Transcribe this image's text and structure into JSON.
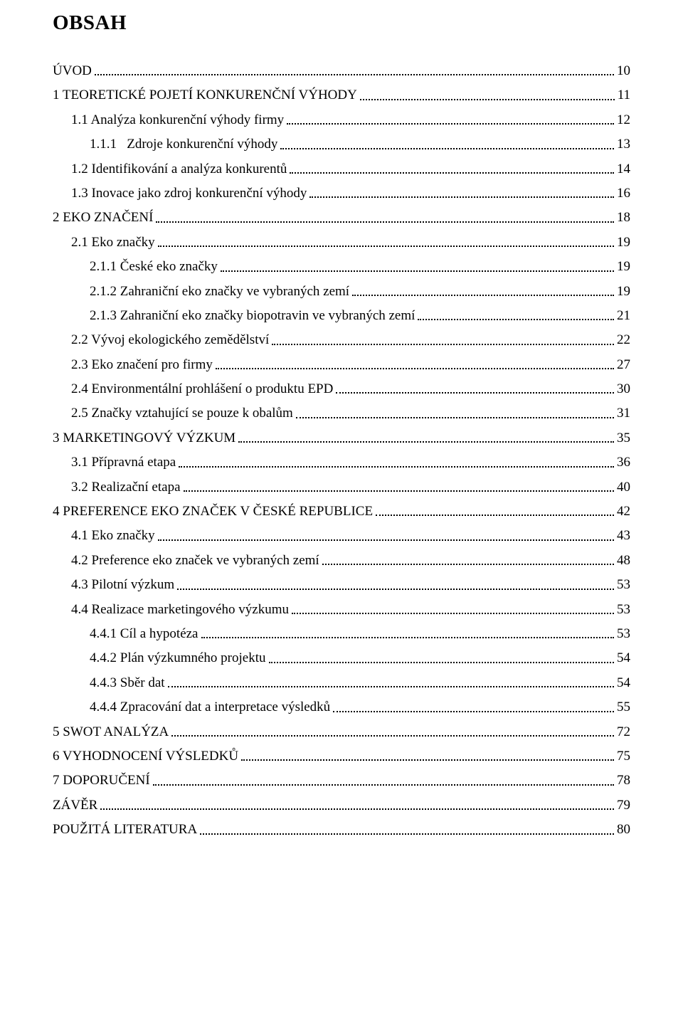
{
  "title": "OBSAH",
  "fonts": {
    "body_family": "Times New Roman",
    "title_size_pt": 22,
    "row_size_pt": 14
  },
  "colors": {
    "text": "#000000",
    "background": "#ffffff",
    "dot_leader": "#000000"
  },
  "toc": [
    {
      "label": "ÚVOD",
      "page": "10",
      "level": 0,
      "smallcaps": true
    },
    {
      "label": "1 TEORETICKÉ POJETÍ KONKURENČNÍ VÝHODY",
      "page": "11",
      "level": 0,
      "smallcaps": true
    },
    {
      "label": "1.1 Analýza konkurenční výhody firmy",
      "page": "12",
      "level": 1,
      "smallcaps": false
    },
    {
      "label": "1.1.1   Zdroje konkurenční výhody",
      "page": "13",
      "level": 2,
      "smallcaps": false
    },
    {
      "label": "1.2 Identifikování a analýza konkurentů",
      "page": "14",
      "level": 1,
      "smallcaps": false
    },
    {
      "label": "1.3 Inovace jako zdroj konkurenční výhody",
      "page": "16",
      "level": 1,
      "smallcaps": false
    },
    {
      "label": "2 EKO ZNAČENÍ",
      "page": "18",
      "level": 0,
      "smallcaps": true
    },
    {
      "label": "2.1 Eko značky",
      "page": "19",
      "level": 1,
      "smallcaps": false
    },
    {
      "label": "2.1.1 České eko značky",
      "page": "19",
      "level": 2,
      "smallcaps": false
    },
    {
      "label": "2.1.2 Zahraniční eko značky ve vybraných zemí",
      "page": "19",
      "level": 2,
      "smallcaps": false
    },
    {
      "label": "2.1.3 Zahraniční eko značky biopotravin ve vybraných zemí",
      "page": "21",
      "level": 2,
      "smallcaps": false
    },
    {
      "label": "2.2 Vývoj ekologického zemědělství",
      "page": "22",
      "level": 1,
      "smallcaps": false
    },
    {
      "label": "2.3 Eko značení pro firmy",
      "page": "27",
      "level": 1,
      "smallcaps": false
    },
    {
      "label": "2.4 Environmentální prohlášení o produktu EPD",
      "page": "30",
      "level": 1,
      "smallcaps": false
    },
    {
      "label": "2.5 Značky vztahující se pouze k obalům",
      "page": "31",
      "level": 1,
      "smallcaps": false
    },
    {
      "label": "3 MARKETINGOVÝ VÝZKUM",
      "page": "35",
      "level": 0,
      "smallcaps": true
    },
    {
      "label": "3.1 Přípravná etapa",
      "page": "36",
      "level": 1,
      "smallcaps": false
    },
    {
      "label": "3.2 Realizační etapa",
      "page": "40",
      "level": 1,
      "smallcaps": false
    },
    {
      "label": "4 PREFERENCE EKO ZNAČEK V ČESKÉ REPUBLICE",
      "page": "42",
      "level": 0,
      "smallcaps": true
    },
    {
      "label": "4.1 Eko značky",
      "page": "43",
      "level": 1,
      "smallcaps": false
    },
    {
      "label": "4.2 Preference eko značek ve vybraných zemí",
      "page": "48",
      "level": 1,
      "smallcaps": false
    },
    {
      "label": "4.3 Pilotní výzkum",
      "page": "53",
      "level": 1,
      "smallcaps": false
    },
    {
      "label": "4.4 Realizace marketingového výzkumu",
      "page": "53",
      "level": 1,
      "smallcaps": false
    },
    {
      "label": "4.4.1 Cíl a hypotéza",
      "page": "53",
      "level": 2,
      "smallcaps": false
    },
    {
      "label": "4.4.2 Plán výzkumného projektu",
      "page": "54",
      "level": 2,
      "smallcaps": false
    },
    {
      "label": "4.4.3 Sběr dat",
      "page": "54",
      "level": 2,
      "smallcaps": false
    },
    {
      "label": "4.4.4 Zpracování dat a interpretace výsledků",
      "page": "55",
      "level": 2,
      "smallcaps": false
    },
    {
      "label": "5 SWOT ANALÝZA",
      "page": "72",
      "level": 0,
      "smallcaps": true
    },
    {
      "label": "6 VYHODNOCENÍ VÝSLEDKŮ",
      "page": "75",
      "level": 0,
      "smallcaps": true
    },
    {
      "label": "7 DOPORUČENÍ",
      "page": "78",
      "level": 0,
      "smallcaps": true
    },
    {
      "label": "ZÁVĚR",
      "page": "79",
      "level": 0,
      "smallcaps": true
    },
    {
      "label": "POUŽITÁ LITERATURA",
      "page": "80",
      "level": 0,
      "smallcaps": true
    }
  ]
}
